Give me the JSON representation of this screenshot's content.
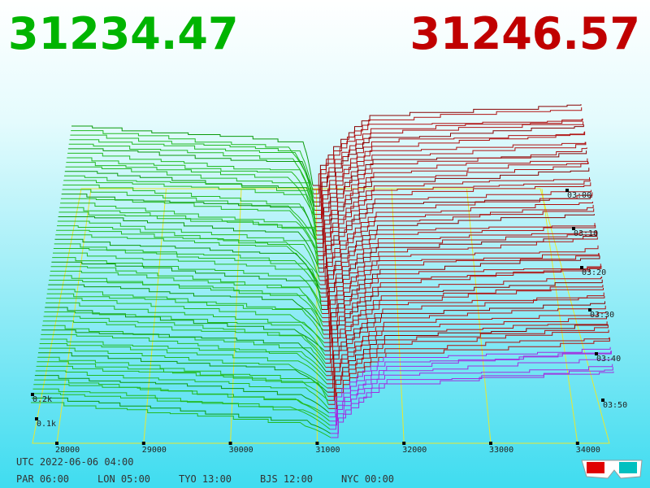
{
  "header": {
    "bid": "31234.47",
    "ask": "31246.57"
  },
  "price_axis": [
    "28000",
    "29000",
    "30000",
    "31000",
    "32000",
    "33000",
    "34000"
  ],
  "depth_axis": [
    "0.2k",
    "0.1k"
  ],
  "time_axis": [
    "03:00",
    "03:10",
    "03:20",
    "03:30",
    "03:40",
    "03:50"
  ],
  "footer": {
    "utc": "UTC 2022-06-06 04:00",
    "clocks": [
      "PAR 06:00",
      "LON 05:00",
      "TYO 13:00",
      "BJS 12:00",
      "NYC 00:00"
    ]
  }
}
